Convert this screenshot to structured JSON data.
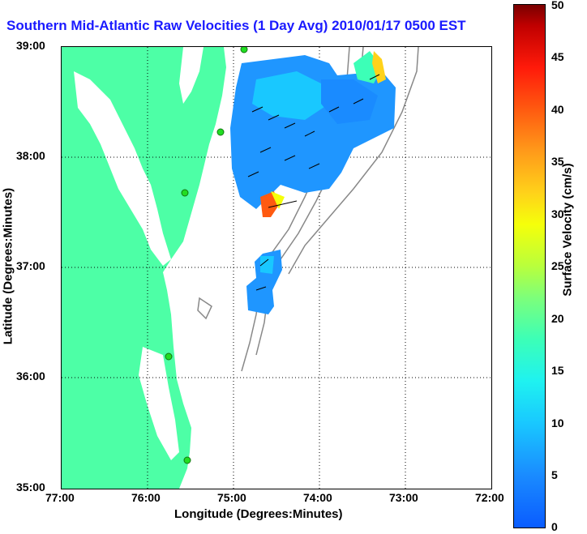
{
  "title": "Southern Mid-Atlantic Raw Velocities (1 Day Avg) 2010/01/17 0500 EST",
  "map": {
    "x_axis_label": "Longitude (Degrees:Minutes)",
    "y_axis_label": "Latitude (Degrees:Minutes)",
    "x_ticks": [
      "77:00",
      "76:00",
      "75:00",
      "74:00",
      "73:00",
      "72:00"
    ],
    "y_ticks": [
      "39:00",
      "38:00",
      "37:00",
      "36:00",
      "35:00"
    ],
    "colorbar_label": "Surface Velocity (cm/s)",
    "colorbar_ticks": [
      "50",
      "45",
      "40",
      "35",
      "30",
      "25",
      "20",
      "15",
      "10",
      "5",
      "0"
    ],
    "colorbar_range": [
      0,
      50
    ],
    "land_color": "#4dffa6",
    "bathymetry_color": "#888888",
    "station_color": "#22dd22"
  }
}
